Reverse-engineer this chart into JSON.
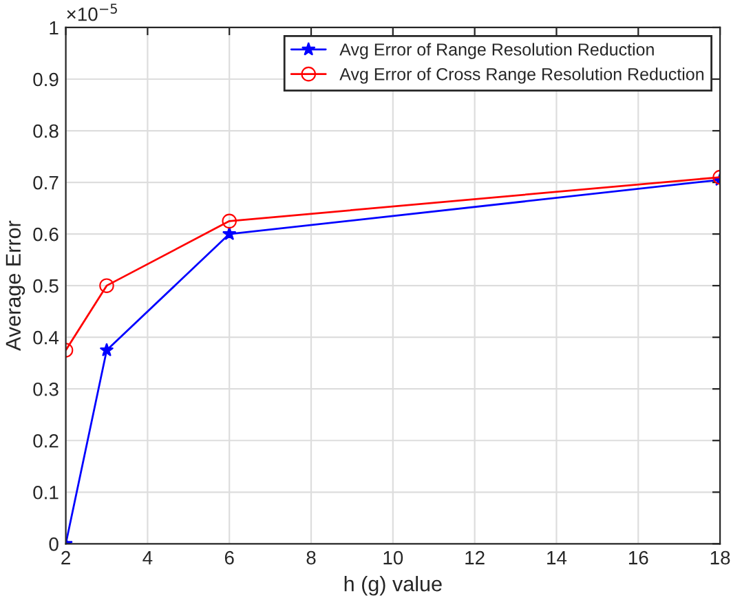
{
  "chart_data": {
    "type": "line",
    "xlabel": "h (g) value",
    "ylabel": "Average Error",
    "annotations": [
      "×10$^{−5}$"
    ],
    "x": [
      2,
      3,
      6,
      18
    ],
    "series": [
      {
        "name": "Avg Error of Range Resolution Reduction",
        "color": "#0000ff",
        "marker": "star",
        "values": [
          0,
          0.375,
          0.6,
          0.705
        ]
      },
      {
        "name": "Avg Error of Cross Range Resolution Reduction",
        "color": "#ff0000",
        "marker": "circle",
        "values": [
          0.375,
          0.5,
          0.625,
          0.71
        ]
      }
    ],
    "xlim": [
      2,
      18
    ],
    "xticks": [
      2,
      4,
      6,
      8,
      10,
      12,
      14,
      16,
      18
    ],
    "ylim": [
      0,
      1
    ],
    "yticks": [
      0,
      0.1,
      0.2,
      0.3,
      0.4,
      0.5,
      0.6,
      0.7,
      0.8,
      0.9,
      1
    ],
    "grid": true,
    "legend": "top right",
    "line_style": "solid"
  }
}
